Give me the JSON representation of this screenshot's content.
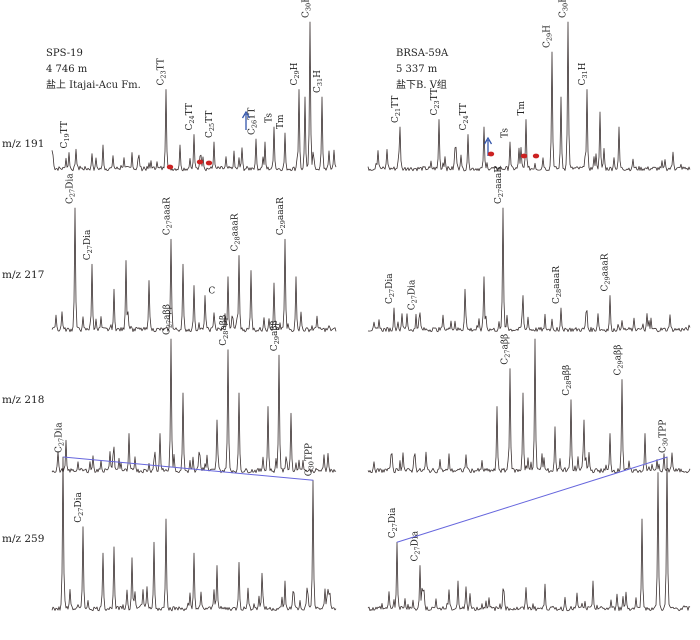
{
  "chart_data": {
    "type": "line",
    "title": "",
    "xlabel": "",
    "ylabel": "",
    "samples": [
      {
        "name": "SPS-19",
        "depth": "4 746 m",
        "formation": "盐上 Itajai-Acu Fm."
      },
      {
        "name": "BRSA-59A",
        "depth": "5 337 m",
        "formation": "盐下B. V组"
      }
    ],
    "rows": [
      {
        "mz": "m/z 191",
        "panels": [
          {
            "peaks": [
              {
                "x": 0.06,
                "h": 0.13,
                "label": "C19TT"
              },
              {
                "x": 0.18,
                "h": 0.18
              },
              {
                "x": 0.28,
                "h": 0.13
              },
              {
                "x": 0.4,
                "h": 0.55,
                "label": "C23TT"
              },
              {
                "x": 0.45,
                "h": 0.18
              },
              {
                "x": 0.5,
                "h": 0.25,
                "label": "C24TT"
              },
              {
                "x": 0.57,
                "h": 0.2,
                "label": "C25TT"
              },
              {
                "x": 0.64,
                "h": 0.14
              },
              {
                "x": 0.72,
                "h": 0.22,
                "label": "C26TT"
              },
              {
                "x": 0.75,
                "h": 0.2
              },
              {
                "x": 0.78,
                "h": 0.3,
                "label": "Ts"
              },
              {
                "x": 0.82,
                "h": 0.26,
                "label": "Tm"
              },
              {
                "x": 0.87,
                "h": 0.55,
                "label": "C29H"
              },
              {
                "x": 0.89,
                "h": 0.5
              },
              {
                "x": 0.91,
                "h": 1.0,
                "label": "C30H"
              },
              {
                "x": 0.95,
                "h": 0.5,
                "label": "C31H"
              }
            ]
          },
          {
            "peaks": [
              {
                "x": 0.1,
                "h": 0.3,
                "label": "C21TT"
              },
              {
                "x": 0.22,
                "h": 0.35,
                "label": "C23TT"
              },
              {
                "x": 0.31,
                "h": 0.25,
                "label": "C24TT"
              },
              {
                "x": 0.36,
                "h": 0.3
              },
              {
                "x": 0.44,
                "h": 0.2,
                "label": "Ts"
              },
              {
                "x": 0.49,
                "h": 0.35,
                "label": "Tm"
              },
              {
                "x": 0.57,
                "h": 0.8,
                "label": "C29H"
              },
              {
                "x": 0.6,
                "h": 0.5
              },
              {
                "x": 0.62,
                "h": 1.0,
                "label": "C30H"
              },
              {
                "x": 0.68,
                "h": 0.55,
                "label": "C31H"
              },
              {
                "x": 0.72,
                "h": 0.4
              },
              {
                "x": 0.78,
                "h": 0.3
              }
            ]
          }
        ]
      },
      {
        "mz": "m/z 217",
        "panels": [
          {
            "peaks": [
              {
                "x": 0.08,
                "h": 1.0,
                "label": "C27Dia"
              },
              {
                "x": 0.14,
                "h": 0.55,
                "label": "C27Dia"
              },
              {
                "x": 0.22,
                "h": 0.35
              },
              {
                "x": 0.26,
                "h": 0.58
              },
              {
                "x": 0.34,
                "h": 0.42
              },
              {
                "x": 0.42,
                "h": 0.75,
                "label": "C27aaaR"
              },
              {
                "x": 0.46,
                "h": 0.55
              },
              {
                "x": 0.5,
                "h": 0.38
              },
              {
                "x": 0.54,
                "h": 0.3,
                "label": "C"
              },
              {
                "x": 0.62,
                "h": 0.45
              },
              {
                "x": 0.66,
                "h": 0.62,
                "label": "C28aaaR"
              },
              {
                "x": 0.7,
                "h": 0.5
              },
              {
                "x": 0.78,
                "h": 0.4
              },
              {
                "x": 0.82,
                "h": 0.75,
                "label": "C29aaaR"
              },
              {
                "x": 0.86,
                "h": 0.45
              }
            ]
          },
          {
            "peaks": [
              {
                "x": 0.08,
                "h": 0.2,
                "label": "C27Dia"
              },
              {
                "x": 0.15,
                "h": 0.15,
                "label": "C27Dia"
              },
              {
                "x": 0.3,
                "h": 0.35
              },
              {
                "x": 0.36,
                "h": 0.45
              },
              {
                "x": 0.42,
                "h": 1.0,
                "label": "C27aaaR"
              },
              {
                "x": 0.48,
                "h": 0.3
              },
              {
                "x": 0.55,
                "h": 0.15
              },
              {
                "x": 0.6,
                "h": 0.2,
                "label": "C28aaaR"
              },
              {
                "x": 0.68,
                "h": 0.18
              },
              {
                "x": 0.75,
                "h": 0.3,
                "label": "C29aaaR"
              },
              {
                "x": 0.88,
                "h": 0.12
              }
            ]
          }
        ]
      },
      {
        "mz": "m/z 218",
        "panels": [
          {
            "peaks": [
              {
                "x": 0.05,
                "h": 0.25
              },
              {
                "x": 0.22,
                "h": 0.2
              },
              {
                "x": 0.27,
                "h": 0.3
              },
              {
                "x": 0.38,
                "h": 0.3
              },
              {
                "x": 0.42,
                "h": 1.0,
                "label": "C27aββ"
              },
              {
                "x": 0.46,
                "h": 0.6
              },
              {
                "x": 0.58,
                "h": 0.4
              },
              {
                "x": 0.62,
                "h": 0.92,
                "label": "C28aββ"
              },
              {
                "x": 0.66,
                "h": 0.6
              },
              {
                "x": 0.76,
                "h": 0.5
              },
              {
                "x": 0.8,
                "h": 0.88,
                "label": "C29aββ"
              },
              {
                "x": 0.84,
                "h": 0.45
              }
            ]
          },
          {
            "peaks": [
              {
                "x": 0.1,
                "h": 0.1
              },
              {
                "x": 0.25,
                "h": 0.15
              },
              {
                "x": 0.4,
                "h": 0.5
              },
              {
                "x": 0.44,
                "h": 0.78,
                "label": "C27aββ"
              },
              {
                "x": 0.48,
                "h": 0.6
              },
              {
                "x": 0.52,
                "h": 1.0
              },
              {
                "x": 0.58,
                "h": 0.35
              },
              {
                "x": 0.63,
                "h": 0.55,
                "label": "C28aββ"
              },
              {
                "x": 0.67,
                "h": 0.4
              },
              {
                "x": 0.75,
                "h": 0.3
              },
              {
                "x": 0.79,
                "h": 0.7,
                "label": "C29aββ"
              },
              {
                "x": 0.86,
                "h": 0.3
              },
              {
                "x": 0.92,
                "h": 0.15
              }
            ]
          }
        ]
      },
      {
        "mz": "m/z 259",
        "panels": [
          {
            "peaks": [
              {
                "x": 0.04,
                "h": 1.0,
                "label": "C27Dia"
              },
              {
                "x": 0.11,
                "h": 0.55,
                "label": "C27Dia"
              },
              {
                "x": 0.18,
                "h": 0.38
              },
              {
                "x": 0.22,
                "h": 0.42
              },
              {
                "x": 0.28,
                "h": 0.35
              },
              {
                "x": 0.36,
                "h": 0.45
              },
              {
                "x": 0.4,
                "h": 0.6
              },
              {
                "x": 0.5,
                "h": 0.38
              },
              {
                "x": 0.58,
                "h": 0.3
              },
              {
                "x": 0.66,
                "h": 0.32
              },
              {
                "x": 0.74,
                "h": 0.25
              },
              {
                "x": 0.82,
                "h": 0.2
              },
              {
                "x": 0.92,
                "h": 0.85,
                "label": "C30TPP"
              }
            ]
          },
          {
            "peaks": [
              {
                "x": 0.09,
                "h": 0.45,
                "label": "C27Dia"
              },
              {
                "x": 0.16,
                "h": 0.3,
                "label": "C27Dia"
              },
              {
                "x": 0.28,
                "h": 0.2
              },
              {
                "x": 0.42,
                "h": 0.15
              },
              {
                "x": 0.55,
                "h": 0.18
              },
              {
                "x": 0.7,
                "h": 0.2
              },
              {
                "x": 0.85,
                "h": 0.6
              },
              {
                "x": 0.9,
                "h": 0.9
              },
              {
                "x": 0.93,
                "h": 1.0,
                "label": "C30TPP"
              }
            ]
          }
        ]
      }
    ]
  },
  "figure": {
    "header_left": {
      "name": "SPS-19",
      "depth": "4 746 m",
      "formation": "盐上 Itajai-Acu Fm."
    },
    "header_right": {
      "name": "BRSA-59A",
      "depth": "5 337 m",
      "formation": "盐下B. V组"
    },
    "mz_labels": [
      "m/z 191",
      "m/z 217",
      "m/z 218",
      "m/z 259"
    ],
    "colors": {
      "trace": "#3a3030",
      "arrow": "#3355aa",
      "dot": "#cc2222",
      "link": "#6666dd"
    }
  }
}
